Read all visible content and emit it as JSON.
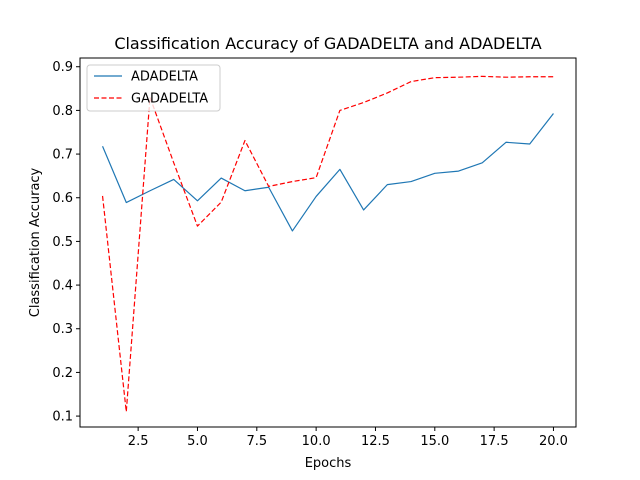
{
  "chart_data": {
    "type": "line",
    "title": "Classification Accuracy of GADADELTA and ADADELTA",
    "xlabel": "Epochs",
    "ylabel": "Classification Accuracy",
    "xlim": [
      0.05,
      20.95
    ],
    "ylim": [
      0.075,
      0.92
    ],
    "xticks": [
      2.5,
      5.0,
      7.5,
      10.0,
      12.5,
      15.0,
      17.5,
      20.0
    ],
    "xtick_labels": [
      "2.5",
      "5.0",
      "7.5",
      "10.0",
      "12.5",
      "15.0",
      "17.5",
      "20.0"
    ],
    "yticks": [
      0.1,
      0.2,
      0.3,
      0.4,
      0.5,
      0.6,
      0.7,
      0.8,
      0.9
    ],
    "ytick_labels": [
      "0.1",
      "0.2",
      "0.3",
      "0.4",
      "0.5",
      "0.6",
      "0.7",
      "0.8",
      "0.9"
    ],
    "grid": false,
    "legend_position": "upper-left",
    "x": [
      1,
      2,
      3,
      4,
      5,
      6,
      7,
      8,
      9,
      10,
      11,
      12,
      13,
      14,
      15,
      16,
      17,
      18,
      19,
      20
    ],
    "series": [
      {
        "name": "ADADELTA",
        "color": "#1f77b4",
        "style": "solid",
        "values": [
          0.718,
          0.589,
          0.616,
          0.642,
          0.593,
          0.645,
          0.616,
          0.624,
          0.524,
          0.603,
          0.665,
          0.572,
          0.63,
          0.637,
          0.656,
          0.661,
          0.68,
          0.727,
          0.723,
          0.793
        ]
      },
      {
        "name": "GADADELTA",
        "color": "#ff0000",
        "style": "dashed",
        "values": [
          0.604,
          0.11,
          0.83,
          0.68,
          0.535,
          0.59,
          0.731,
          0.626,
          0.637,
          0.646,
          0.8,
          0.818,
          0.84,
          0.866,
          0.875,
          0.876,
          0.878,
          0.876,
          0.877,
          0.877
        ]
      }
    ]
  }
}
